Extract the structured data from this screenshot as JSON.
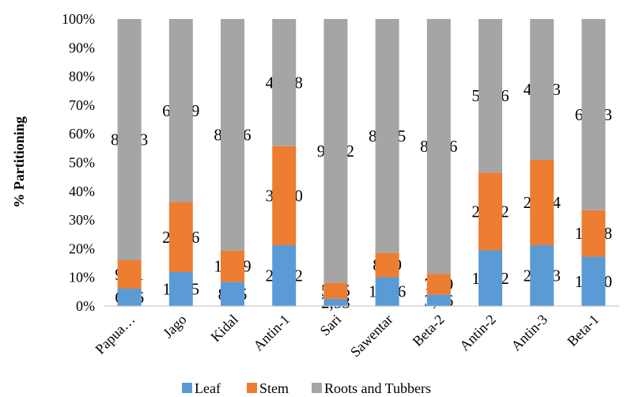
{
  "chart_data": {
    "type": "bar",
    "stacked": true,
    "normalized": true,
    "title": "",
    "xlabel": "",
    "ylabel": "% Partitioning",
    "ylim": [
      0,
      100
    ],
    "ytick_labels": [
      "0%",
      "10%",
      "20%",
      "30%",
      "40%",
      "50%",
      "60%",
      "70%",
      "80%",
      "90%",
      "100%"
    ],
    "grid": false,
    "legend_position": "bottom",
    "categories": [
      "Papua…",
      "Jago",
      "Kidal",
      "Antin-1",
      "Sari",
      "Sawentar",
      "Beta-2",
      "Antin-2",
      "Antin-3",
      "Beta-1"
    ],
    "series": [
      {
        "name": "Leaf",
        "color": "#5B9BD5",
        "values": [
          6.06,
          11.85,
          8.35,
          21.22,
          2.53,
          10.06,
          3.96,
          19.42,
          21.23,
          17.2
        ],
        "labels": [
          "6,06",
          "11,85",
          "8,35",
          "21,22",
          "2,53",
          "10,06",
          "3,96",
          "19,42",
          "21,23",
          "17,20"
        ]
      },
      {
        "name": "Stem",
        "color": "#ED7D31",
        "values": [
          9.91,
          24.36,
          10.99,
          34.5,
          5.55,
          8.49,
          7.29,
          27.02,
          29.74,
          16.18
        ],
        "labels": [
          "9,91",
          "24,36",
          "10,99",
          "34,50",
          "5,55",
          "8,49",
          "7,29",
          "27,02",
          "29,74",
          "16,18"
        ]
      },
      {
        "name": "Roots and Tubbers",
        "color": "#A5A5A5",
        "values": [
          84.03,
          63.79,
          80.66,
          44.28,
          91.92,
          81.45,
          88.76,
          53.56,
          49.03,
          66.63
        ],
        "labels": [
          "84,03",
          "63,79",
          "80,66",
          "44,28",
          "91,92",
          "81,45",
          "88,76",
          "53,56",
          "49,03",
          "66,63"
        ]
      }
    ]
  }
}
